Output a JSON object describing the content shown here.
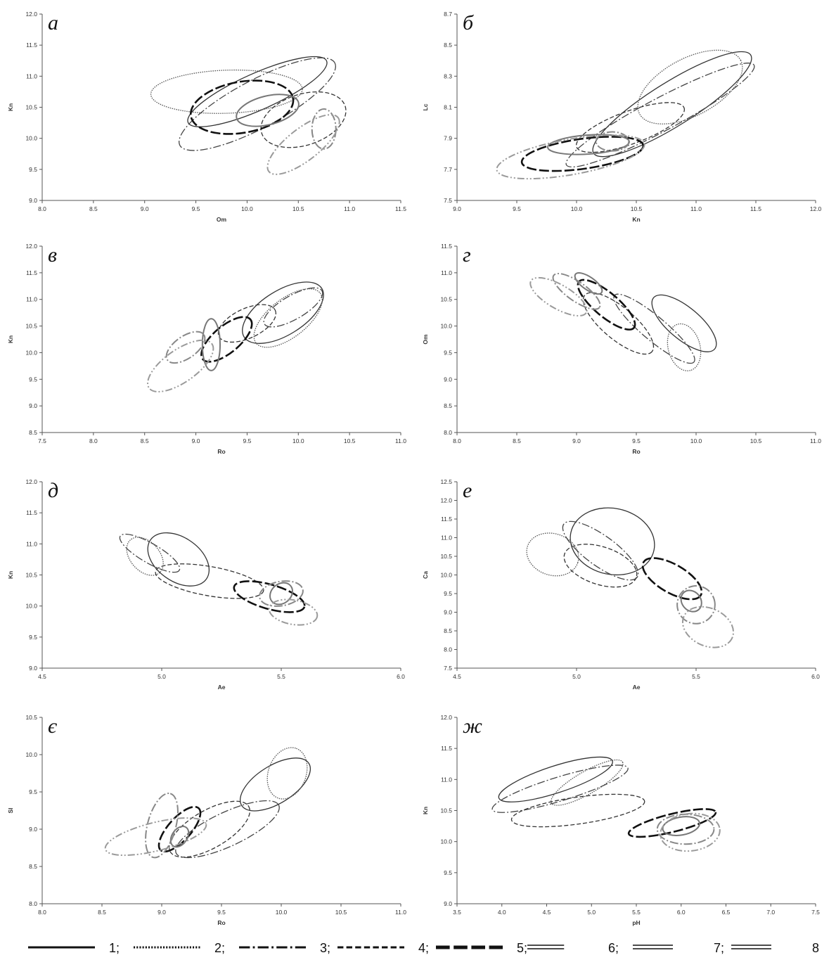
{
  "chart_data": [
    {
      "type": "scatter",
      "letter": "а",
      "xlabel": "Om",
      "ylabel": "Kn",
      "xlim": [
        8.0,
        11.5
      ],
      "ylim": [
        9.0,
        12.0
      ],
      "xticks": [
        "8.0",
        "8.5",
        "9.0",
        "9.5",
        "10.0",
        "10.5",
        "11.0",
        "11.5"
      ],
      "yticks": [
        "9.0",
        "9.5",
        "10.0",
        "10.5",
        "11.0",
        "11.5",
        "12.0"
      ],
      "ellipses": [
        {
          "series": "1",
          "cx": 10.1,
          "cy": 10.75,
          "rx": 0.95,
          "ry": 0.23,
          "angle": -24
        },
        {
          "series": "2",
          "cx": 9.8,
          "cy": 10.75,
          "rx": 0.95,
          "ry": 0.27,
          "angle": -2
        },
        {
          "series": "3",
          "cx": 10.1,
          "cy": 10.55,
          "rx": 1.1,
          "ry": 0.3,
          "angle": -28
        },
        {
          "series": "4",
          "cx": 10.55,
          "cy": 10.3,
          "rx": 0.55,
          "ry": 0.32,
          "angle": -18
        },
        {
          "series": "5",
          "cx": 9.95,
          "cy": 10.5,
          "rx": 0.65,
          "ry": 0.32,
          "angle": -10
        },
        {
          "series": "6",
          "cx": 10.2,
          "cy": 10.45,
          "rx": 0.4,
          "ry": 0.18,
          "angle": -14
        },
        {
          "series": "7",
          "cx": 10.75,
          "cy": 10.15,
          "rx": 0.15,
          "ry": 0.25,
          "angle": 0
        },
        {
          "series": "8",
          "cx": 10.55,
          "cy": 9.9,
          "rx": 0.55,
          "ry": 0.2,
          "angle": -38
        }
      ]
    },
    {
      "type": "scatter",
      "letter": "б",
      "xlabel": "Kn",
      "ylabel": "Lc",
      "xlim": [
        9.0,
        12.0
      ],
      "ylim": [
        7.5,
        8.7
      ],
      "xticks": [
        "9.0",
        "9.5",
        "10.0",
        "10.5",
        "11.0",
        "11.5",
        "12.0"
      ],
      "yticks": [
        "7.5",
        "7.7",
        "7.9",
        "8.1",
        "8.3",
        "8.5",
        "8.7"
      ],
      "ellipses": [
        {
          "series": "1",
          "cx": 10.8,
          "cy": 8.12,
          "rx": 0.68,
          "ry": 0.16,
          "angle": -32
        },
        {
          "series": "2",
          "cx": 10.95,
          "cy": 8.23,
          "rx": 0.42,
          "ry": 0.21,
          "angle": -28
        },
        {
          "series": "3",
          "cx": 10.7,
          "cy": 8.05,
          "rx": 0.78,
          "ry": 0.12,
          "angle": -28
        },
        {
          "series": "4",
          "cx": 10.45,
          "cy": 7.97,
          "rx": 0.42,
          "ry": 0.12,
          "angle": -20
        },
        {
          "series": "5",
          "cx": 10.05,
          "cy": 7.8,
          "rx": 0.45,
          "ry": 0.11,
          "angle": -8
        },
        {
          "series": "6",
          "cx": 10.1,
          "cy": 7.86,
          "rx": 0.3,
          "ry": 0.07,
          "angle": -4
        },
        {
          "series": "7",
          "cx": 10.3,
          "cy": 7.88,
          "rx": 0.12,
          "ry": 0.07,
          "angle": 0
        },
        {
          "series": "8",
          "cx": 9.95,
          "cy": 7.78,
          "rx": 0.55,
          "ry": 0.13,
          "angle": -10
        }
      ]
    },
    {
      "type": "scatter",
      "letter": "в",
      "xlabel": "Ro",
      "ylabel": "Kn",
      "xlim": [
        7.5,
        11.0
      ],
      "ylim": [
        8.5,
        12.0
      ],
      "xticks": [
        "7.5",
        "8.0",
        "8.5",
        "9.0",
        "9.5",
        "10.0",
        "10.5",
        "11.0"
      ],
      "yticks": [
        "8.5",
        "9.0",
        "9.5",
        "10.0",
        "10.5",
        "11.0",
        "11.5",
        "12.0"
      ],
      "ellipses": [
        {
          "series": "1",
          "cx": 9.85,
          "cy": 10.75,
          "rx": 0.62,
          "ry": 0.3,
          "angle": -32
        },
        {
          "series": "2",
          "cx": 9.9,
          "cy": 10.65,
          "rx": 0.55,
          "ry": 0.26,
          "angle": -38
        },
        {
          "series": "3",
          "cx": 9.95,
          "cy": 10.85,
          "rx": 0.45,
          "ry": 0.16,
          "angle": -30
        },
        {
          "series": "4",
          "cx": 9.5,
          "cy": 10.55,
          "rx": 0.42,
          "ry": 0.2,
          "angle": -25
        },
        {
          "series": "5",
          "cx": 9.3,
          "cy": 10.25,
          "rx": 0.42,
          "ry": 0.18,
          "angle": -40
        },
        {
          "series": "6",
          "cx": 9.15,
          "cy": 10.15,
          "rx": 0.12,
          "ry": 0.35,
          "angle": 0
        },
        {
          "series": "7",
          "cx": 8.9,
          "cy": 10.1,
          "rx": 0.3,
          "ry": 0.15,
          "angle": -35
        },
        {
          "series": "8",
          "cx": 8.85,
          "cy": 9.75,
          "rx": 0.52,
          "ry": 0.22,
          "angle": -35
        }
      ]
    },
    {
      "type": "scatter",
      "letter": "г",
      "xlabel": "Ro",
      "ylabel": "Om",
      "xlim": [
        8.0,
        11.0
      ],
      "ylim": [
        8.0,
        11.5
      ],
      "xticks": [
        "8.0",
        "8.5",
        "9.0",
        "9.5",
        "10.0",
        "10.5",
        "11.0"
      ],
      "yticks": [
        "8.0",
        "8.5",
        "9.0",
        "9.5",
        "10.0",
        "10.5",
        "11.0",
        "11.5"
      ],
      "ellipses": [
        {
          "series": "1",
          "cx": 9.9,
          "cy": 10.05,
          "rx": 0.5,
          "ry": 0.2,
          "angle": 40
        },
        {
          "series": "2",
          "cx": 9.9,
          "cy": 9.6,
          "rx": 0.3,
          "ry": 0.2,
          "angle": 75
        },
        {
          "series": "3",
          "cx": 9.65,
          "cy": 9.95,
          "rx": 0.65,
          "ry": 0.15,
          "angle": 40
        },
        {
          "series": "4",
          "cx": 9.35,
          "cy": 10.05,
          "rx": 0.55,
          "ry": 0.2,
          "angle": 40
        },
        {
          "series": "5",
          "cx": 9.25,
          "cy": 10.4,
          "rx": 0.45,
          "ry": 0.15,
          "angle": 40
        },
        {
          "series": "6",
          "cx": 9.1,
          "cy": 10.8,
          "rx": 0.2,
          "ry": 0.08,
          "angle": 35
        },
        {
          "series": "7",
          "cx": 9.0,
          "cy": 10.65,
          "rx": 0.35,
          "ry": 0.12,
          "angle": 35
        },
        {
          "series": "8",
          "cx": 8.85,
          "cy": 10.55,
          "rx": 0.4,
          "ry": 0.15,
          "angle": 30
        }
      ]
    },
    {
      "type": "scatter",
      "letter": "д",
      "xlabel": "Ae",
      "ylabel": "Kn",
      "xlim": [
        4.5,
        6.0
      ],
      "ylim": [
        9.0,
        12.0
      ],
      "xticks": [
        "4.5",
        "5.0",
        "5.5",
        "6.0"
      ],
      "yticks": [
        "9.0",
        "9.5",
        "10.0",
        "10.5",
        "11.0",
        "11.5",
        "12.0"
      ],
      "ellipses": [
        {
          "series": "1",
          "cx": 5.07,
          "cy": 10.75,
          "rx": 0.28,
          "ry": 0.18,
          "angle": 35
        },
        {
          "series": "2",
          "cx": 4.93,
          "cy": 10.8,
          "rx": 0.18,
          "ry": 0.12,
          "angle": 48
        },
        {
          "series": "3",
          "cx": 4.95,
          "cy": 10.85,
          "rx": 0.28,
          "ry": 0.08,
          "angle": 30
        },
        {
          "series": "4",
          "cx": 5.2,
          "cy": 10.4,
          "rx": 0.45,
          "ry": 0.12,
          "angle": 10
        },
        {
          "series": "5",
          "cx": 5.45,
          "cy": 10.15,
          "rx": 0.3,
          "ry": 0.1,
          "angle": 16
        },
        {
          "series": "6",
          "cx": 5.5,
          "cy": 10.2,
          "rx": 0.1,
          "ry": 0.08,
          "angle": -40
        },
        {
          "series": "7",
          "cx": 5.5,
          "cy": 10.2,
          "rx": 0.18,
          "ry": 0.1,
          "angle": -10
        },
        {
          "series": "8",
          "cx": 5.55,
          "cy": 9.9,
          "rx": 0.2,
          "ry": 0.1,
          "angle": 10
        }
      ]
    },
    {
      "type": "scatter",
      "letter": "е",
      "xlabel": "Ae",
      "ylabel": "Ca",
      "xlim": [
        4.5,
        6.0
      ],
      "ylim": [
        7.5,
        12.5
      ],
      "xticks": [
        "4.5",
        "5.0",
        "5.5",
        "6.0"
      ],
      "yticks": [
        "7.5",
        "8.0",
        "8.5",
        "9.0",
        "9.5",
        "10.0",
        "10.5",
        "11.0",
        "11.5",
        "12.0",
        "12.5"
      ],
      "ellipses": [
        {
          "series": "1",
          "cx": 5.15,
          "cy": 10.9,
          "rx": 0.45,
          "ry": 0.35,
          "angle": 12
        },
        {
          "series": "2",
          "cx": 4.9,
          "cy": 10.55,
          "rx": 0.28,
          "ry": 0.22,
          "angle": 18
        },
        {
          "series": "3",
          "cx": 5.1,
          "cy": 10.65,
          "rx": 0.48,
          "ry": 0.16,
          "angle": 36
        },
        {
          "series": "4",
          "cx": 5.1,
          "cy": 10.25,
          "rx": 0.4,
          "ry": 0.2,
          "angle": 18
        },
        {
          "series": "5",
          "cx": 5.4,
          "cy": 9.9,
          "rx": 0.35,
          "ry": 0.15,
          "angle": 30
        },
        {
          "series": "6",
          "cx": 5.48,
          "cy": 9.3,
          "rx": 0.1,
          "ry": 0.12,
          "angle": -40
        },
        {
          "series": "7",
          "cx": 5.5,
          "cy": 9.2,
          "rx": 0.2,
          "ry": 0.2,
          "angle": -10
        },
        {
          "series": "8",
          "cx": 5.55,
          "cy": 8.6,
          "rx": 0.28,
          "ry": 0.2,
          "angle": 24
        }
      ]
    },
    {
      "type": "scatter",
      "letter": "є",
      "xlabel": "Ro",
      "ylabel": "Sl",
      "xlim": [
        8.0,
        11.0
      ],
      "ylim": [
        8.0,
        10.5
      ],
      "xticks": [
        "8.0",
        "8.5",
        "9.0",
        "9.5",
        "10.0",
        "10.5",
        "11.0"
      ],
      "yticks": [
        "8.0",
        "8.5",
        "9.0",
        "9.5",
        "10.0",
        "10.5"
      ],
      "ellipses": [
        {
          "series": "1",
          "cx": 9.95,
          "cy": 9.6,
          "rx": 0.42,
          "ry": 0.2,
          "angle": -32
        },
        {
          "series": "2",
          "cx": 10.05,
          "cy": 9.75,
          "rx": 0.28,
          "ry": 0.2,
          "angle": -70
        },
        {
          "series": "3",
          "cx": 9.55,
          "cy": 9.0,
          "rx": 0.6,
          "ry": 0.18,
          "angle": -25
        },
        {
          "series": "4",
          "cx": 9.4,
          "cy": 9.0,
          "rx": 0.48,
          "ry": 0.2,
          "angle": -30
        },
        {
          "series": "5",
          "cx": 9.15,
          "cy": 9.0,
          "rx": 0.3,
          "ry": 0.12,
          "angle": -48
        },
        {
          "series": "6",
          "cx": 9.15,
          "cy": 8.9,
          "rx": 0.12,
          "ry": 0.08,
          "angle": -55
        },
        {
          "series": "7",
          "cx": 9.0,
          "cy": 9.05,
          "rx": 0.35,
          "ry": 0.15,
          "angle": -75
        },
        {
          "series": "8",
          "cx": 8.95,
          "cy": 8.9,
          "rx": 0.55,
          "ry": 0.15,
          "angle": -14
        }
      ]
    },
    {
      "type": "scatter",
      "letter": "ж",
      "xlabel": "pH",
      "ylabel": "Kn",
      "xlim": [
        3.5,
        7.5
      ],
      "ylim": [
        9.0,
        12.0
      ],
      "xticks": [
        "3.5",
        "4.0",
        "4.5",
        "5.0",
        "5.5",
        "6.0",
        "6.5",
        "7.0",
        "7.5"
      ],
      "yticks": [
        "9.0",
        "9.5",
        "10.0",
        "10.5",
        "11.0",
        "11.5",
        "12.0"
      ],
      "ellipses": [
        {
          "series": "1",
          "cx": 4.6,
          "cy": 11.0,
          "rx": 0.8,
          "ry": 0.18,
          "angle": -18
        },
        {
          "series": "2",
          "cx": 4.95,
          "cy": 10.95,
          "rx": 0.55,
          "ry": 0.15,
          "angle": -30
        },
        {
          "series": "3",
          "cx": 4.65,
          "cy": 10.85,
          "rx": 0.95,
          "ry": 0.16,
          "angle": -17
        },
        {
          "series": "4",
          "cx": 4.85,
          "cy": 10.5,
          "rx": 0.9,
          "ry": 0.18,
          "angle": -8
        },
        {
          "series": "5",
          "cx": 5.9,
          "cy": 10.3,
          "rx": 0.6,
          "ry": 0.12,
          "angle": -14
        },
        {
          "series": "6",
          "cx": 6.0,
          "cy": 10.25,
          "rx": 0.25,
          "ry": 0.12,
          "angle": -10
        },
        {
          "series": "7",
          "cx": 6.05,
          "cy": 10.2,
          "rx": 0.38,
          "ry": 0.2,
          "angle": 0
        },
        {
          "series": "8",
          "cx": 6.1,
          "cy": 10.15,
          "rx": 0.4,
          "ry": 0.25,
          "angle": -6
        }
      ]
    }
  ],
  "legend": {
    "entries": [
      {
        "series": "1",
        "label": "1;",
        "color": "#111111"
      },
      {
        "series": "2",
        "label": "2;",
        "color": "#111111"
      },
      {
        "series": "3",
        "label": "3;",
        "color": "#111111"
      },
      {
        "series": "4",
        "label": "4;",
        "color": "#111111"
      },
      {
        "series": "5",
        "label": "5;",
        "color": "#111111"
      },
      {
        "series": "6",
        "label": "6;",
        "color": "#111111"
      },
      {
        "series": "7",
        "label": "7;",
        "color": "#111111"
      },
      {
        "series": "8",
        "label": "8",
        "color": "#111111"
      }
    ]
  },
  "styles": {
    "1": {
      "dash": "",
      "color": "#333333"
    },
    "2": {
      "dash": "1.5 1.5",
      "color": "#555555"
    },
    "3": {
      "dash": "11 3 2 3",
      "color": "#444444"
    },
    "4": {
      "dash": "6 3",
      "color": "#333333"
    },
    "5": {
      "dash": "14 4",
      "color": "#111111"
    },
    "6": {
      "dash": "",
      "color": "#777777"
    },
    "7": {
      "dash": "12 3 2 3",
      "color": "#888888"
    },
    "8": {
      "dash": "10 3 2 3 2 3",
      "color": "#9a9a9a"
    }
  }
}
